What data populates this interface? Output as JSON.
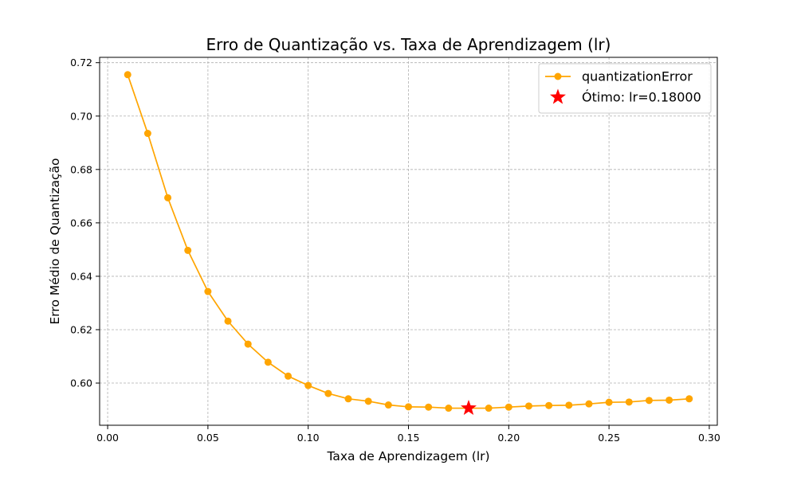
{
  "chart_data": {
    "type": "line",
    "title": "Erro de Quantização vs. Taxa de Aprendizagem (lr)",
    "xlabel": "Taxa de Aprendizagem (lr)",
    "ylabel": "Erro Médio de Quantização",
    "xlim": [
      -0.004,
      0.304
    ],
    "ylim": [
      0.5842,
      0.722
    ],
    "xticks": [
      0.0,
      0.05,
      0.1,
      0.15,
      0.2,
      0.25,
      0.3
    ],
    "xtick_labels": [
      "0.00",
      "0.05",
      "0.10",
      "0.15",
      "0.20",
      "0.25",
      "0.30"
    ],
    "yticks": [
      0.6,
      0.62,
      0.64,
      0.66,
      0.68,
      0.7,
      0.72
    ],
    "ytick_labels": [
      "0.60",
      "0.62",
      "0.64",
      "0.66",
      "0.68",
      "0.70",
      "0.72"
    ],
    "grid": true,
    "legend_position": "top-right",
    "series": [
      {
        "name": "quantizationError",
        "color": "#FFA500",
        "marker": "circle",
        "x": [
          0.01,
          0.02,
          0.03,
          0.04,
          0.05,
          0.06,
          0.07,
          0.08,
          0.09,
          0.1,
          0.11,
          0.12,
          0.13,
          0.14,
          0.15,
          0.16,
          0.17,
          0.18,
          0.19,
          0.2,
          0.21,
          0.22,
          0.23,
          0.24,
          0.25,
          0.26,
          0.27,
          0.28,
          0.29
        ],
        "y": [
          0.7155,
          0.6935,
          0.6694,
          0.6497,
          0.6343,
          0.6232,
          0.6146,
          0.6078,
          0.6026,
          0.5991,
          0.5961,
          0.5941,
          0.5932,
          0.5918,
          0.5911,
          0.591,
          0.5906,
          0.5906,
          0.5906,
          0.591,
          0.5914,
          0.5916,
          0.5917,
          0.5922,
          0.5928,
          0.5929,
          0.5935,
          0.5936,
          0.5941
        ]
      }
    ],
    "optimum": {
      "name": "Ótimo: lr=0.18000",
      "x": 0.18,
      "y": 0.5906,
      "color": "#FF0000",
      "marker": "star"
    }
  }
}
